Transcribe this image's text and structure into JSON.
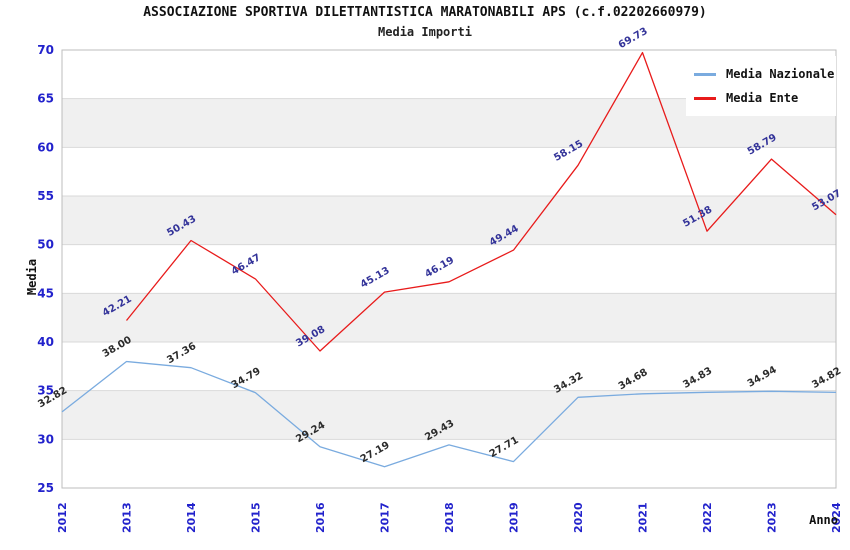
{
  "chart_data": {
    "type": "line",
    "title": "ASSOCIAZIONE SPORTIVA DILETTANTISTICA MARATONABILI APS (c.f.02202660979)",
    "subtitle": "Media Importi",
    "xlabel": "Anno",
    "ylabel": "Media",
    "x": [
      2012,
      2013,
      2014,
      2015,
      2016,
      2017,
      2018,
      2019,
      2020,
      2021,
      2022,
      2023,
      2024
    ],
    "ylim": [
      25,
      70
    ],
    "ytick_step": 5,
    "yticks": [
      25,
      30,
      35,
      40,
      45,
      50,
      55,
      60,
      65,
      70
    ],
    "grid": "horizontal",
    "band_fill": "alternating gray bands between gridlines",
    "legend_position": "top-right",
    "series": [
      {
        "name": "Media Nazionale",
        "color": "#7aabdf",
        "label_color": "#2b2b2b",
        "values": [
          32.82,
          38.0,
          37.36,
          34.79,
          29.24,
          27.19,
          29.43,
          27.71,
          34.32,
          34.68,
          34.83,
          34.94,
          34.82
        ],
        "labels": [
          "32.82",
          "38.00",
          "37.36",
          "34.79",
          "29.24",
          "27.19",
          "29.43",
          "27.71",
          "34.32",
          "34.68",
          "34.83",
          "34.94",
          "34.82"
        ]
      },
      {
        "name": "Media Ente",
        "color": "#e81b1b",
        "label_color": "#333399",
        "values": [
          null,
          42.21,
          50.43,
          46.47,
          39.08,
          45.13,
          46.19,
          49.44,
          58.15,
          69.73,
          51.38,
          58.79,
          53.07
        ],
        "labels": [
          "",
          "42.21",
          "50.43",
          "46.47",
          "39.08",
          "45.13",
          "46.19",
          "49.44",
          "58.15",
          "69.73",
          "51.38",
          "58.79",
          "53.07"
        ]
      }
    ],
    "colors": {
      "tick_label": "#2222cc",
      "band": "#f0f0f0",
      "grid": "#d9d9d9",
      "border": "#bdbdbd",
      "title": "#111111"
    }
  }
}
